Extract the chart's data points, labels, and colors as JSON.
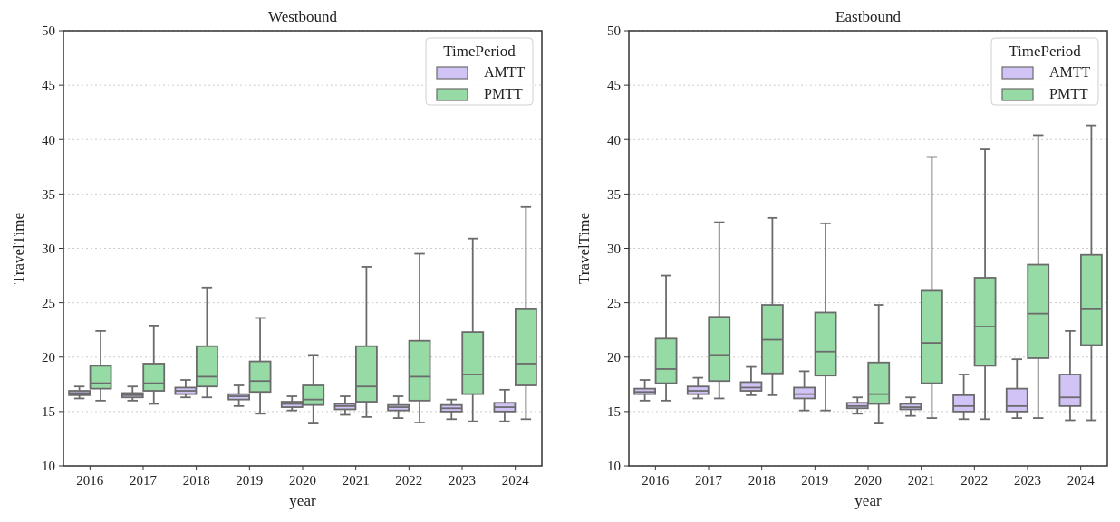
{
  "chart_data": [
    {
      "type": "box",
      "title": "Westbound",
      "xlabel": "year",
      "ylabel": "TravelTime",
      "legend_title": "TimePeriod",
      "legend": "top right",
      "grid": "y",
      "categories": [
        "2016",
        "2017",
        "2018",
        "2019",
        "2020",
        "2021",
        "2022",
        "2023",
        "2024"
      ],
      "ylim": [
        10,
        50
      ],
      "yticks": [
        10,
        15,
        20,
        25,
        30,
        35,
        40,
        45,
        50
      ],
      "series": [
        {
          "name": "AMTT",
          "color": "#d2c3f6",
          "boxes": [
            {
              "low": 16.2,
              "q1": 16.5,
              "median": 16.7,
              "q3": 16.9,
              "high": 17.3
            },
            {
              "low": 16.0,
              "q1": 16.3,
              "median": 16.5,
              "q3": 16.7,
              "high": 17.3
            },
            {
              "low": 16.3,
              "q1": 16.6,
              "median": 16.9,
              "q3": 17.2,
              "high": 17.9
            },
            {
              "low": 15.5,
              "q1": 16.1,
              "median": 16.4,
              "q3": 16.6,
              "high": 17.4
            },
            {
              "low": 15.1,
              "q1": 15.4,
              "median": 15.7,
              "q3": 15.9,
              "high": 16.4
            },
            {
              "low": 14.7,
              "q1": 15.2,
              "median": 15.5,
              "q3": 15.7,
              "high": 16.4
            },
            {
              "low": 14.4,
              "q1": 15.1,
              "median": 15.4,
              "q3": 15.6,
              "high": 16.4
            },
            {
              "low": 14.3,
              "q1": 15.0,
              "median": 15.3,
              "q3": 15.6,
              "high": 16.1
            },
            {
              "low": 14.1,
              "q1": 15.0,
              "median": 15.4,
              "q3": 15.8,
              "high": 17.0
            }
          ]
        },
        {
          "name": "PMTT",
          "color": "#96dba6",
          "boxes": [
            {
              "low": 16.0,
              "q1": 17.1,
              "median": 17.6,
              "q3": 19.2,
              "high": 22.4
            },
            {
              "low": 15.7,
              "q1": 16.9,
              "median": 17.6,
              "q3": 19.4,
              "high": 22.9
            },
            {
              "low": 16.3,
              "q1": 17.3,
              "median": 18.2,
              "q3": 21.0,
              "high": 26.4
            },
            {
              "low": 14.8,
              "q1": 16.8,
              "median": 17.8,
              "q3": 19.6,
              "high": 23.6
            },
            {
              "low": 13.9,
              "q1": 15.6,
              "median": 16.1,
              "q3": 17.4,
              "high": 20.2
            },
            {
              "low": 14.5,
              "q1": 15.9,
              "median": 17.3,
              "q3": 21.0,
              "high": 28.3
            },
            {
              "low": 14.0,
              "q1": 16.0,
              "median": 18.2,
              "q3": 21.5,
              "high": 29.5
            },
            {
              "low": 14.1,
              "q1": 16.6,
              "median": 18.4,
              "q3": 22.3,
              "high": 30.9
            },
            {
              "low": 14.3,
              "q1": 17.4,
              "median": 19.4,
              "q3": 24.4,
              "high": 33.8
            }
          ]
        }
      ]
    },
    {
      "type": "box",
      "title": "Eastbound",
      "xlabel": "year",
      "ylabel": "TravelTime",
      "legend_title": "TimePeriod",
      "legend": "top right",
      "grid": "y",
      "categories": [
        "2016",
        "2017",
        "2018",
        "2019",
        "2020",
        "2021",
        "2022",
        "2023",
        "2024"
      ],
      "ylim": [
        10,
        50
      ],
      "yticks": [
        10,
        15,
        20,
        25,
        30,
        35,
        40,
        45,
        50
      ],
      "series": [
        {
          "name": "AMTT",
          "color": "#d2c3f6",
          "boxes": [
            {
              "low": 16.0,
              "q1": 16.6,
              "median": 16.8,
              "q3": 17.1,
              "high": 17.9
            },
            {
              "low": 16.2,
              "q1": 16.6,
              "median": 16.9,
              "q3": 17.3,
              "high": 18.1
            },
            {
              "low": 16.5,
              "q1": 16.9,
              "median": 17.2,
              "q3": 17.7,
              "high": 19.1
            },
            {
              "low": 15.1,
              "q1": 16.2,
              "median": 16.6,
              "q3": 17.2,
              "high": 18.7
            },
            {
              "low": 14.8,
              "q1": 15.3,
              "median": 15.5,
              "q3": 15.8,
              "high": 16.3
            },
            {
              "low": 14.6,
              "q1": 15.2,
              "median": 15.4,
              "q3": 15.7,
              "high": 16.3
            },
            {
              "low": 14.3,
              "q1": 15.0,
              "median": 15.5,
              "q3": 16.5,
              "high": 18.4
            },
            {
              "low": 14.4,
              "q1": 15.0,
              "median": 15.5,
              "q3": 17.1,
              "high": 19.8
            },
            {
              "low": 14.2,
              "q1": 15.5,
              "median": 16.3,
              "q3": 18.4,
              "high": 22.4
            }
          ]
        },
        {
          "name": "PMTT",
          "color": "#96dba6",
          "boxes": [
            {
              "low": 16.0,
              "q1": 17.6,
              "median": 18.9,
              "q3": 21.7,
              "high": 27.5
            },
            {
              "low": 16.2,
              "q1": 17.8,
              "median": 20.2,
              "q3": 23.7,
              "high": 32.4
            },
            {
              "low": 16.5,
              "q1": 18.5,
              "median": 21.6,
              "q3": 24.8,
              "high": 32.8
            },
            {
              "low": 15.1,
              "q1": 18.3,
              "median": 20.5,
              "q3": 24.1,
              "high": 32.3
            },
            {
              "low": 13.9,
              "q1": 15.7,
              "median": 16.6,
              "q3": 19.5,
              "high": 24.8
            },
            {
              "low": 14.4,
              "q1": 17.6,
              "median": 21.3,
              "q3": 26.1,
              "high": 38.4
            },
            {
              "low": 14.3,
              "q1": 19.2,
              "median": 22.8,
              "q3": 27.3,
              "high": 39.1
            },
            {
              "low": 14.4,
              "q1": 19.9,
              "median": 24.0,
              "q3": 28.5,
              "high": 40.4
            },
            {
              "low": 14.2,
              "q1": 21.1,
              "median": 24.4,
              "q3": 29.4,
              "high": 41.3
            }
          ]
        }
      ]
    }
  ]
}
